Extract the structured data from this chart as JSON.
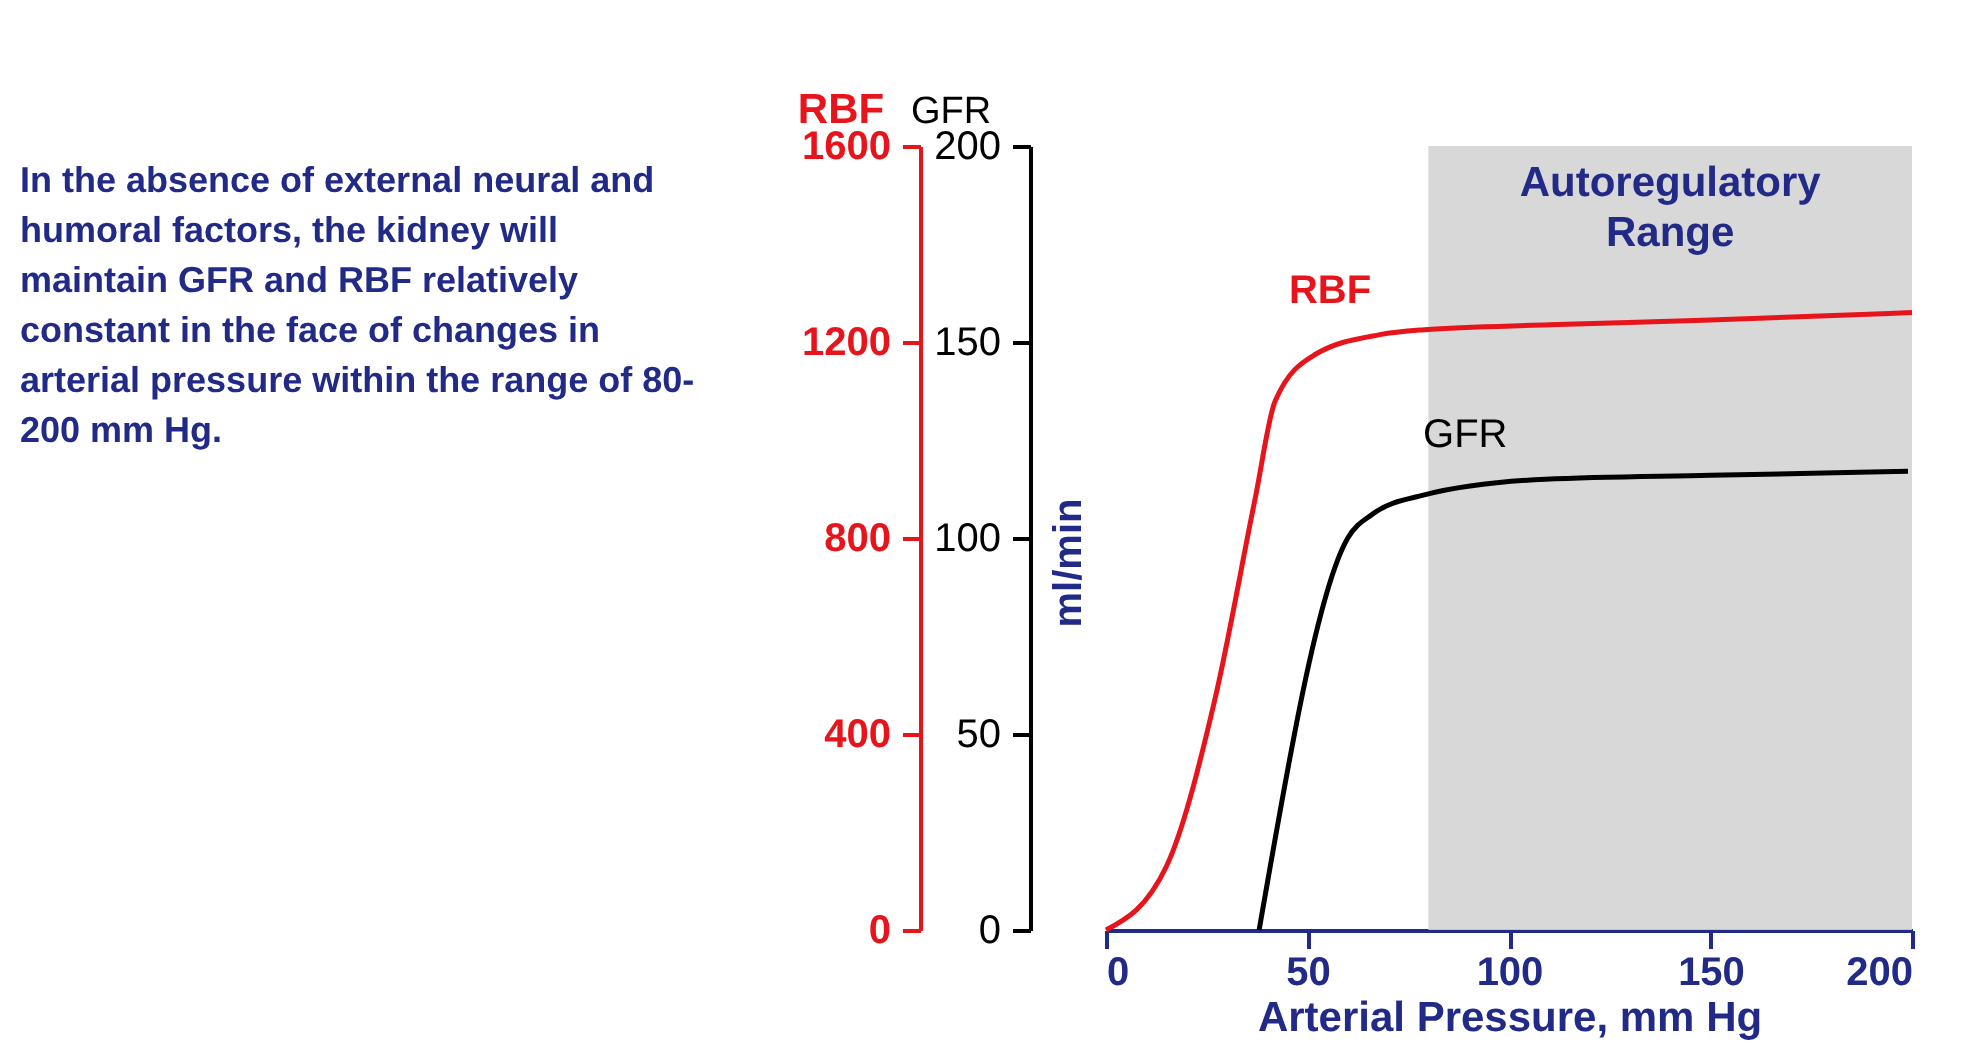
{
  "chart_data": {
    "type": "line",
    "xlabel": "Arterial Pressure, mm Hg",
    "ylabel": "RBF",
    "y2label": "GFR",
    "annotations": [
      "In the absence of external neural and humoral factors, the kidney will maintain GFR and RBF relatively constant in the face of changes in arterial pressure within the range of 80-200 mm Hg.",
      "ml/min"
    ],
    "xlim": [
      0,
      200
    ],
    "xticks": [
      0,
      50,
      100,
      150,
      200
    ],
    "ylim": [
      0,
      1600
    ],
    "yticks": [
      0,
      400,
      800,
      1200,
      1600
    ],
    "y2lim": [
      0,
      200
    ],
    "y2ticks": [
      0,
      50,
      100,
      150,
      200
    ],
    "grid": false,
    "line_style": "solid",
    "bands": [
      {
        "axis": "x",
        "from": 80,
        "to": 200,
        "label": "Autoregulatory Range",
        "color": "#d4d4d4"
      }
    ],
    "series": [
      {
        "name": "RBF",
        "color": "#e8141c",
        "x": [
          0,
          15,
          27,
          37,
          42,
          52,
          68,
          79,
          110,
          150,
          200
        ],
        "values": [
          0,
          130,
          470,
          880,
          1080,
          1175,
          1215,
          1225,
          1235,
          1245,
          1260
        ]
      },
      {
        "name": "GFR",
        "color": "#000000",
        "axis": "y2",
        "x": [
          38,
          60,
          66,
          79,
          109,
          150,
          199
        ],
        "values": [
          0,
          100,
          106,
          111,
          115,
          116,
          117
        ]
      }
    ]
  }
}
